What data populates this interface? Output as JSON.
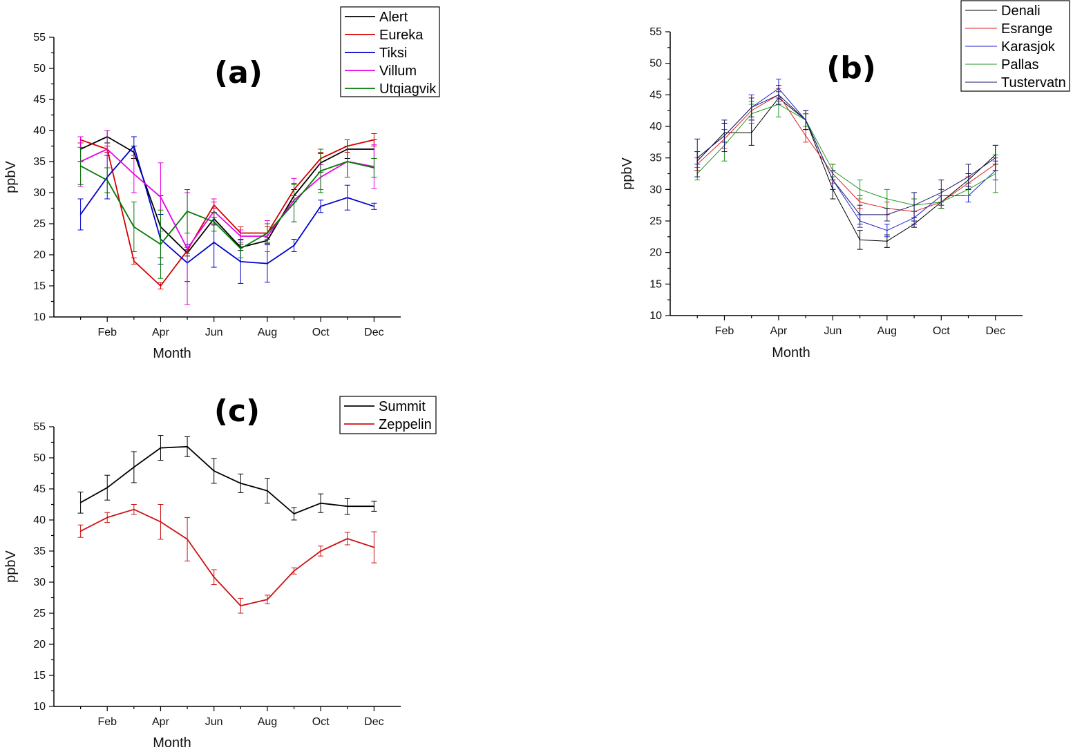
{
  "chart_data": [
    {
      "type": "line",
      "panel_label": "(a)",
      "xlabel": "Month",
      "ylabel": "ppbV",
      "x": [
        1,
        2,
        3,
        4,
        5,
        6,
        7,
        8,
        9,
        10,
        11,
        12
      ],
      "x_tick_labels": [
        "Feb",
        "Apr",
        "Jun",
        "Aug",
        "Oct",
        "Dec"
      ],
      "x_tick_positions": [
        2,
        4,
        6,
        8,
        10,
        12
      ],
      "xlim": [
        0,
        13
      ],
      "ylim": [
        10,
        55
      ],
      "y_ticks": [
        10,
        15,
        20,
        25,
        30,
        35,
        40,
        45,
        50,
        55
      ],
      "legend_position": "top-right",
      "series": [
        {
          "name": "Alert",
          "color": "#000000",
          "values": [
            37.0,
            39.0,
            36.5,
            24.5,
            20.3,
            25.8,
            21.2,
            22.3,
            29.5,
            34.8,
            37.0,
            37.0
          ],
          "errors": [
            2.0,
            1.0,
            1.0,
            5.0,
            0.5,
            1.0,
            0.5,
            0.5,
            1.0,
            1.5,
            1.5,
            1.5
          ]
        },
        {
          "name": "Eureka",
          "color": "#d40000",
          "values": [
            38.5,
            37.0,
            19.0,
            15.0,
            20.7,
            28.0,
            23.5,
            23.5,
            30.5,
            35.5,
            37.5,
            38.5
          ],
          "errors": [
            0.5,
            0.5,
            0.5,
            0.5,
            0.5,
            0.5,
            1.0,
            1.0,
            1.0,
            1.0,
            1.0,
            1.0
          ]
        },
        {
          "name": "Tiksi",
          "color": "#0000cc",
          "values": [
            26.5,
            32.5,
            37.5,
            22.5,
            18.7,
            22.0,
            18.9,
            18.6,
            21.5,
            27.8,
            29.2,
            27.8
          ],
          "errors": [
            2.5,
            3.5,
            1.5,
            4.0,
            3.0,
            4.0,
            3.5,
            3.0,
            1.0,
            1.0,
            2.0,
            0.5
          ]
        },
        {
          "name": "Villum",
          "color": "#e600e6",
          "values": [
            35.0,
            37.0,
            33.0,
            29.3,
            21.0,
            27.0,
            23.0,
            23.0,
            28.8,
            32.5,
            35.0,
            34.2
          ],
          "errors": [
            4.0,
            3.0,
            3.0,
            5.5,
            9.0,
            2.0,
            1.0,
            2.5,
            3.5,
            2.0,
            2.5,
            3.5
          ]
        },
        {
          "name": "Utqiagvik",
          "color": "#007a00",
          "values": [
            34.3,
            32.0,
            24.5,
            21.7,
            27.0,
            25.3,
            21.0,
            23.5,
            28.3,
            33.5,
            35.0,
            34.0
          ],
          "errors": [
            3.0,
            2.0,
            4.0,
            5.5,
            3.5,
            1.5,
            1.5,
            1.5,
            3.0,
            3.5,
            2.5,
            1.5
          ]
        }
      ]
    },
    {
      "type": "line",
      "panel_label": "(b)",
      "xlabel": "Month",
      "ylabel": "ppbV",
      "x": [
        1,
        2,
        3,
        4,
        5,
        6,
        7,
        8,
        9,
        10,
        11,
        12
      ],
      "x_tick_labels": [
        "Feb",
        "Apr",
        "Jun",
        "Aug",
        "Oct",
        "Dec"
      ],
      "x_tick_positions": [
        2,
        4,
        6,
        8,
        10,
        12
      ],
      "xlim": [
        0,
        13
      ],
      "ylim": [
        10,
        55
      ],
      "y_ticks": [
        10,
        15,
        20,
        25,
        30,
        35,
        40,
        45,
        50,
        55
      ],
      "legend_position": "top-right",
      "series": [
        {
          "name": "Denali",
          "color": "#000000",
          "values": [
            34.5,
            39.0,
            39.0,
            44.5,
            41.0,
            30.0,
            22.0,
            21.8,
            24.5,
            28.0,
            31.5,
            35.5
          ],
          "errors": [
            1.5,
            1.5,
            2.0,
            1.0,
            1.0,
            1.5,
            1.5,
            1.0,
            0.5,
            1.0,
            1.0,
            1.5
          ]
        },
        {
          "name": "Esrange",
          "color": "#dd2222",
          "values": [
            34.0,
            38.0,
            42.5,
            45.0,
            38.5,
            32.5,
            28.0,
            27.0,
            26.5,
            28.0,
            31.0,
            34.0
          ],
          "errors": [
            1.0,
            1.5,
            1.5,
            1.0,
            1.0,
            1.5,
            1.0,
            1.0,
            2.0,
            1.0,
            1.0,
            1.0
          ]
        },
        {
          "name": "Karasjok",
          "color": "#2222cc",
          "values": [
            35.0,
            38.5,
            43.0,
            46.0,
            41.0,
            31.5,
            25.0,
            23.5,
            25.5,
            29.0,
            29.0,
            33.0
          ],
          "errors": [
            1.0,
            1.0,
            2.0,
            1.5,
            1.5,
            1.5,
            1.0,
            1.0,
            1.0,
            1.0,
            1.0,
            1.5
          ]
        },
        {
          "name": "Pallas",
          "color": "#229922",
          "values": [
            32.5,
            37.0,
            42.0,
            43.5,
            41.0,
            33.0,
            30.0,
            28.5,
            27.5,
            28.0,
            30.0,
            32.5
          ],
          "errors": [
            1.0,
            2.5,
            1.5,
            2.0,
            1.0,
            1.0,
            1.5,
            1.5,
            1.0,
            1.0,
            1.0,
            3.0
          ]
        },
        {
          "name": "Tustervatn",
          "color": "#1a1a66",
          "values": [
            35.0,
            38.5,
            43.0,
            45.0,
            41.0,
            31.5,
            26.0,
            26.0,
            27.5,
            29.5,
            32.0,
            35.0
          ],
          "errors": [
            3.0,
            2.5,
            1.5,
            1.5,
            1.5,
            1.5,
            1.5,
            1.0,
            2.0,
            2.0,
            2.0,
            2.0
          ]
        }
      ]
    },
    {
      "type": "line",
      "panel_label": "(c)",
      "xlabel": "Month",
      "ylabel": "ppbV",
      "x": [
        1,
        2,
        3,
        4,
        5,
        6,
        7,
        8,
        9,
        10,
        11,
        12
      ],
      "x_tick_labels": [
        "Feb",
        "Apr",
        "Jun",
        "Aug",
        "Oct",
        "Dec"
      ],
      "x_tick_positions": [
        2,
        4,
        6,
        8,
        10,
        12
      ],
      "xlim": [
        0,
        13
      ],
      "ylim": [
        10,
        55
      ],
      "y_ticks": [
        10,
        15,
        20,
        25,
        30,
        35,
        40,
        45,
        50,
        55
      ],
      "legend_position": "top-right",
      "series": [
        {
          "name": "Summit",
          "color": "#000000",
          "values": [
            42.8,
            45.2,
            48.5,
            51.6,
            51.8,
            47.9,
            45.9,
            44.7,
            41.0,
            42.7,
            42.2,
            42.2
          ],
          "errors": [
            1.7,
            2.0,
            2.5,
            2.0,
            1.6,
            2.0,
            1.5,
            2.0,
            1.0,
            1.5,
            1.3,
            0.8
          ]
        },
        {
          "name": "Zeppelin",
          "color": "#cc1111",
          "values": [
            38.2,
            40.4,
            41.7,
            39.7,
            36.9,
            30.8,
            26.2,
            27.2,
            31.8,
            35.0,
            37.0,
            35.6
          ],
          "errors": [
            1.0,
            0.8,
            0.8,
            2.8,
            3.5,
            1.2,
            1.2,
            0.7,
            0.5,
            0.8,
            1.0,
            2.5
          ]
        }
      ]
    }
  ]
}
